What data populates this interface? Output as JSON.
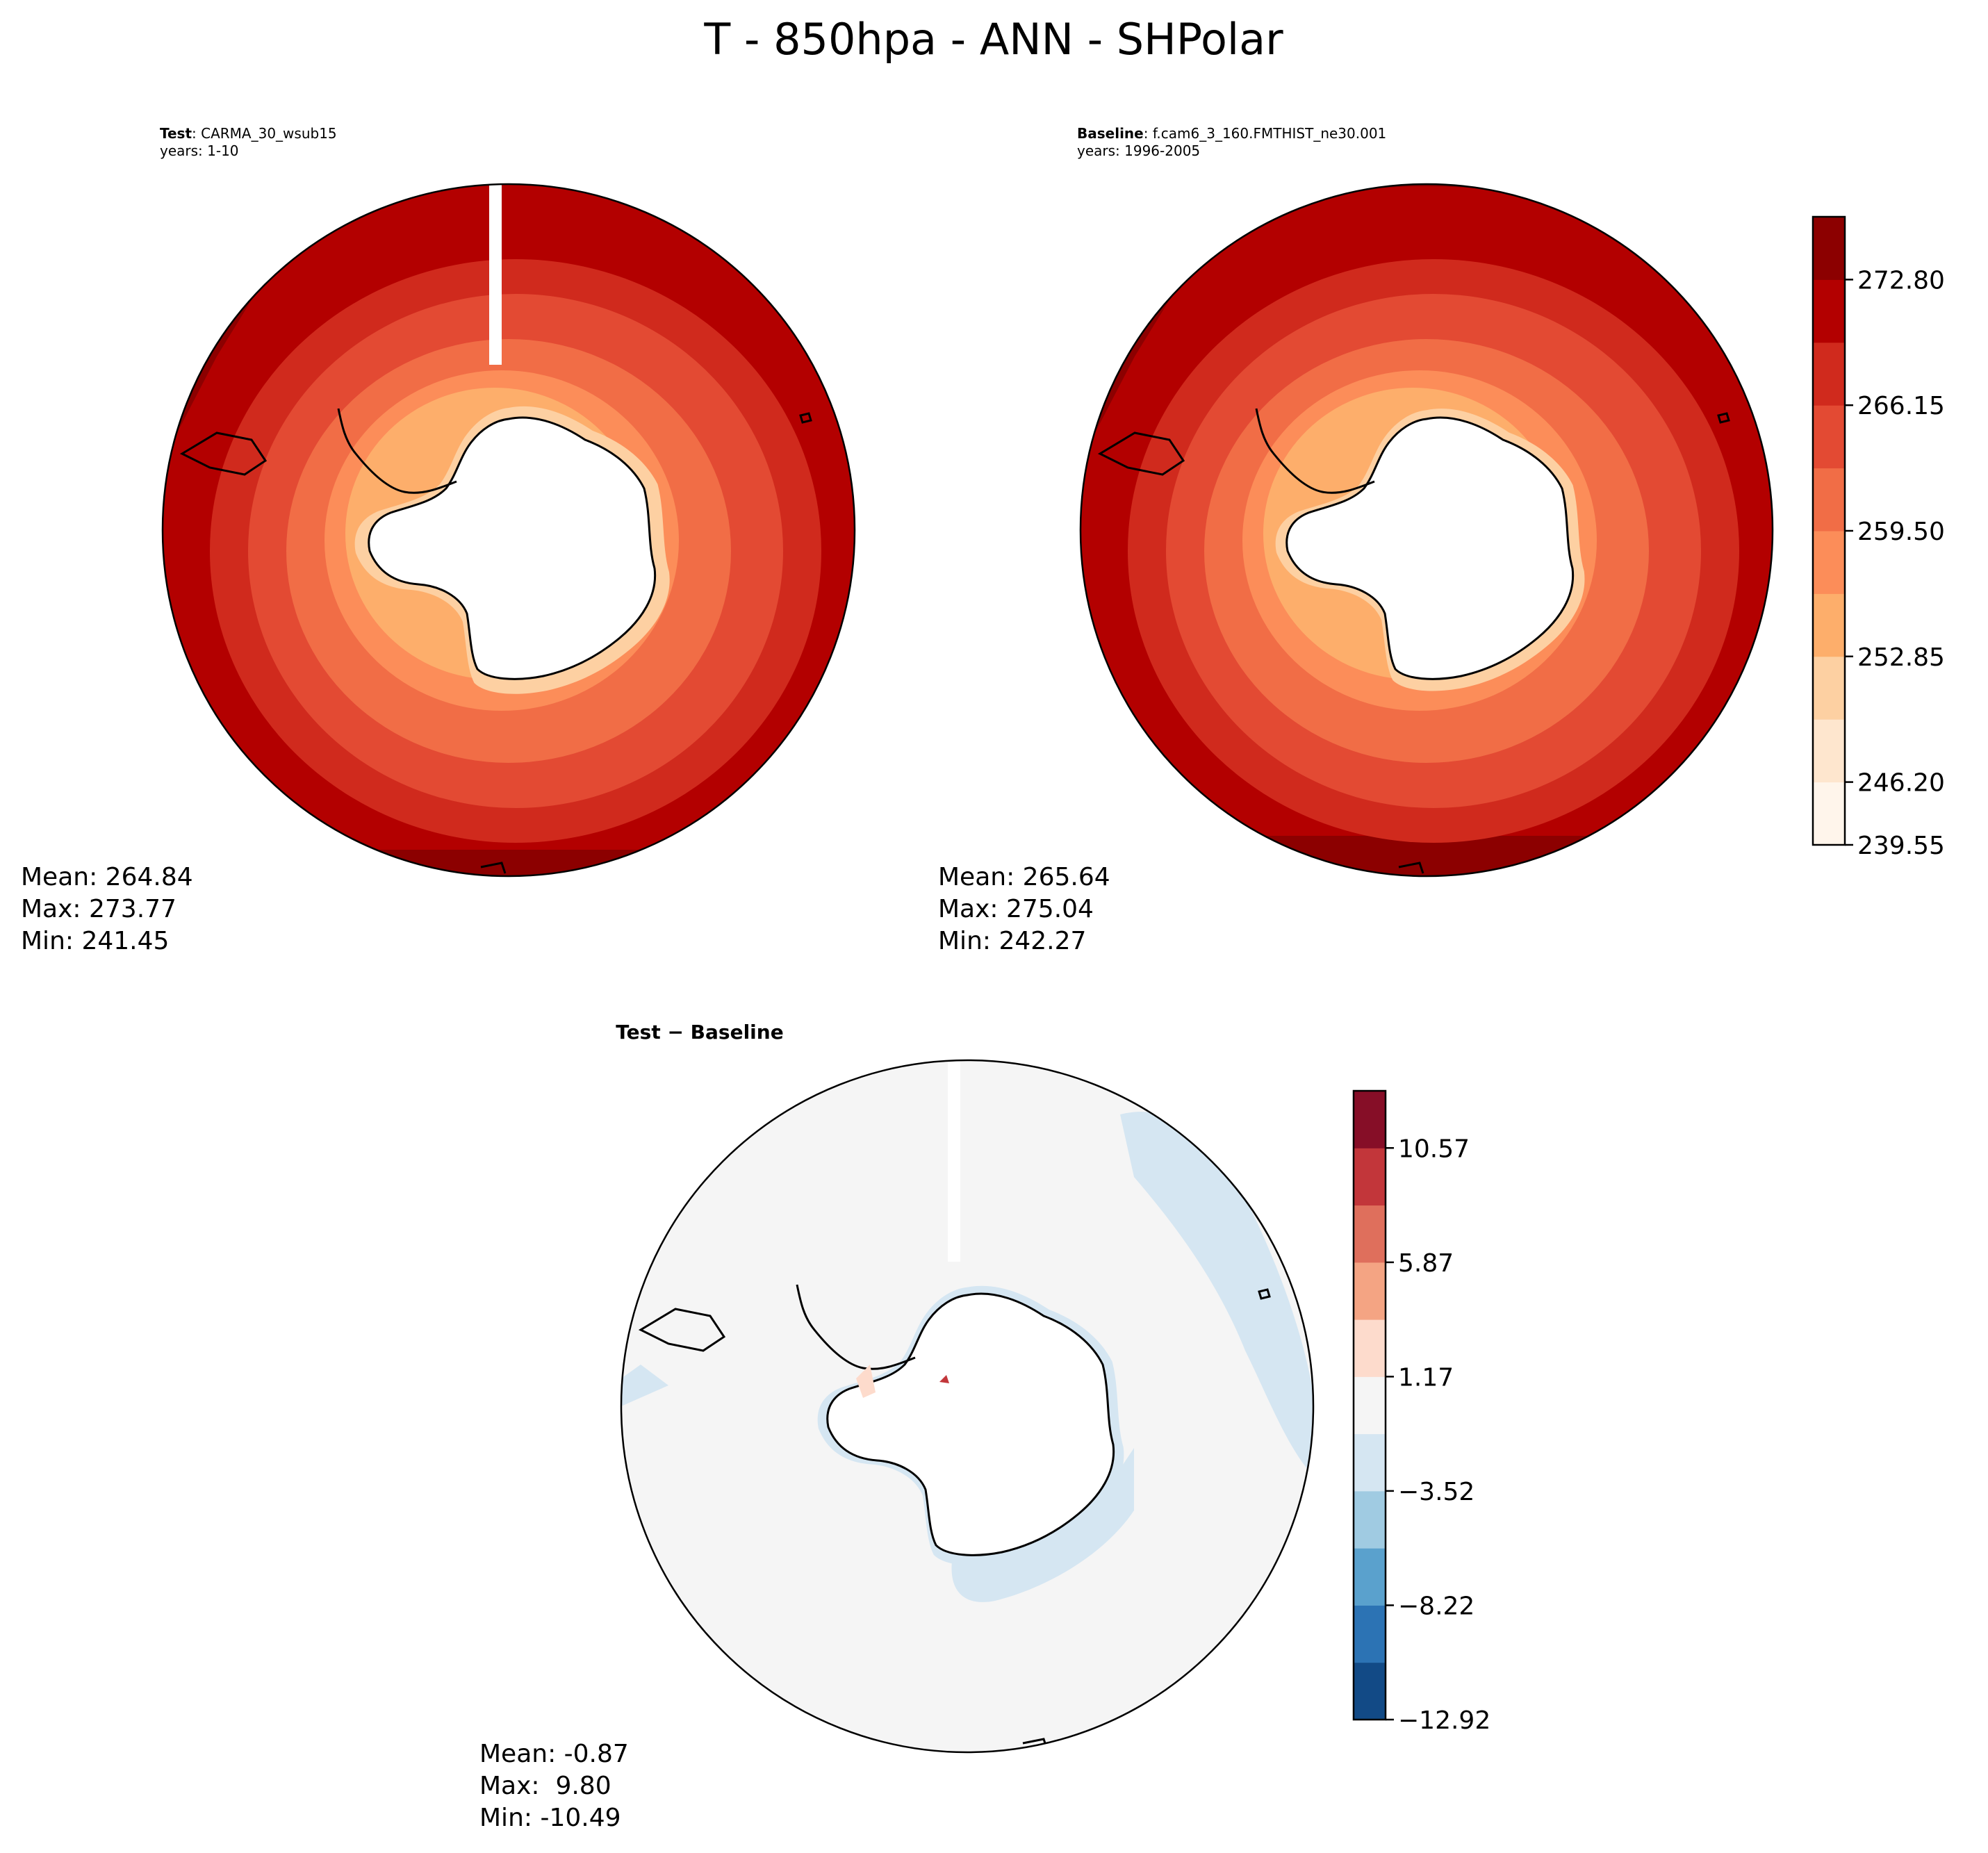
{
  "figure": {
    "title": "T - 850hpa - ANN - SHPolar"
  },
  "panels": {
    "test": {
      "label_bold": "Test",
      "label_rest": ": CARMA_30_wsub15",
      "years": "years: 1-10",
      "stats": {
        "mean": "Mean: 264.84",
        "max": "Max: 273.77",
        "min": "Min: 241.45"
      }
    },
    "baseline": {
      "label_bold": "Baseline",
      "label_rest": ": f.cam6_3_160.FMTHIST_ne30.001",
      "years": "years: 1996-2005",
      "stats": {
        "mean": "Mean: 265.64",
        "max": "Max: 275.04",
        "min": "Min: 242.27"
      }
    },
    "diff": {
      "title": "Test − Baseline",
      "stats": {
        "mean": "Mean: -0.87",
        "max": "Max:  9.80",
        "min": "Min: -10.49"
      }
    }
  },
  "colorbars": {
    "temperature": {
      "colormap": "Reds",
      "tick_labels": [
        "272.80",
        "266.15",
        "259.50",
        "252.85",
        "246.20",
        "239.55"
      ],
      "colors": [
        "#fff5eb",
        "#fee6ce",
        "#fdd0a2",
        "#fdae6b",
        "#fc8d59",
        "#f16d46",
        "#e34a33",
        "#d02a1d",
        "#b30000",
        "#8c0000"
      ]
    },
    "difference": {
      "colormap": "RdBu_r",
      "tick_labels": [
        "10.57",
        "5.87",
        "1.17",
        "−3.52",
        "−8.22",
        "−12.92"
      ],
      "colors": [
        "#124a86",
        "#2c73b4",
        "#5aa1cd",
        "#a0cbe2",
        "#d5e6f2",
        "#f5f5f5",
        "#fddbcc",
        "#f4a483",
        "#df6f5c",
        "#c2363a",
        "#860e27"
      ]
    }
  }
}
